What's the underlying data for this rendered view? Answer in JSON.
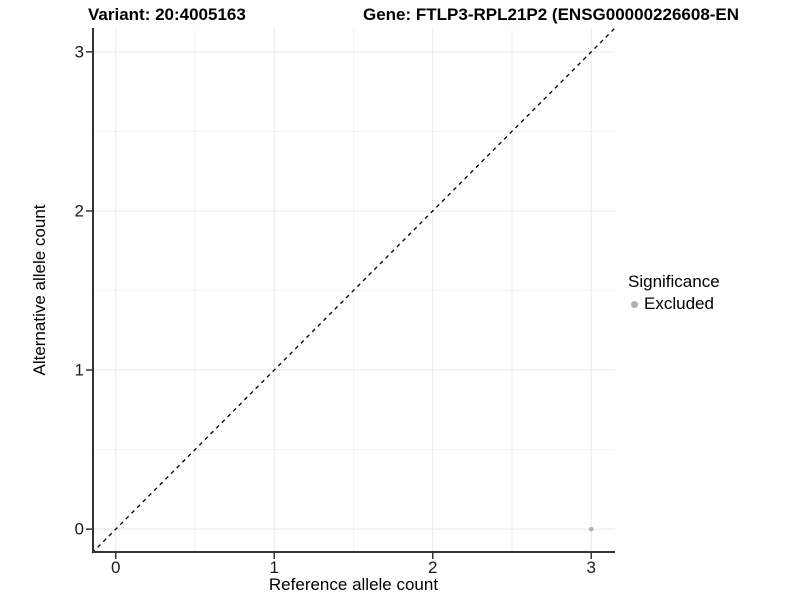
{
  "header": {
    "variant_title": "Variant: 20:4005163",
    "gene_title": "Gene: FTLP3-RPL21P2 (ENSG00000226608-EN"
  },
  "legend": {
    "title": "Significance",
    "items": [
      {
        "label": "Excluded",
        "color": "#b0b0b0",
        "marker": "dot"
      }
    ]
  },
  "colors": {
    "background": "#ffffff",
    "grid_major": "#e8e8e8",
    "grid_minor": "#f3f3f3",
    "axis_line": "#333333",
    "tick": "#333333",
    "reference_line": "#000000",
    "point_excluded": "#b0b0b0",
    "text": "#000000"
  },
  "chart_data": {
    "type": "scatter",
    "xlabel": "Reference allele count",
    "ylabel": "Alternative allele count",
    "xlim": [
      -0.15,
      3.15
    ],
    "ylim": [
      -0.15,
      3.15
    ],
    "x_breaks": [
      0,
      1,
      2,
      3
    ],
    "y_breaks": [
      0,
      1,
      2,
      3
    ],
    "x_tick_labels": [
      "0",
      "1",
      "2",
      "3"
    ],
    "y_tick_labels": [
      "0",
      "1",
      "2",
      "3"
    ],
    "x_minor_breaks": [
      0.5,
      1.5,
      2.5
    ],
    "y_minor_breaks": [
      0.5,
      1.5,
      2.5
    ],
    "grid": true,
    "legend_position": "right",
    "series": [
      {
        "name": "Excluded",
        "color": "#b0b0b0",
        "points": [
          {
            "x": 3,
            "y": 0
          }
        ]
      }
    ],
    "reference_line": {
      "type": "identity",
      "style": "dashed",
      "from": -0.15,
      "to": 3.15
    }
  }
}
